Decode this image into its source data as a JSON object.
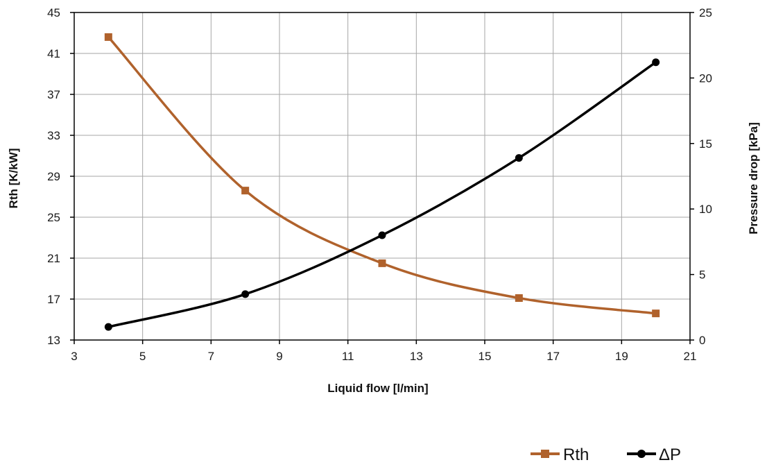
{
  "chart_data": {
    "type": "line",
    "xlabel": "Liquid flow [l/min]",
    "ylabel": "Rth [K/kW]",
    "y2label": "Pressure drop [kPa]",
    "xlim": [
      3,
      21
    ],
    "ylim": [
      13,
      45
    ],
    "y2lim": [
      0,
      25
    ],
    "x_ticks": [
      3,
      5,
      7,
      9,
      11,
      13,
      15,
      17,
      19,
      21
    ],
    "y_ticks": [
      13,
      17,
      21,
      25,
      29,
      33,
      37,
      41,
      45
    ],
    "y2_ticks": [
      0,
      5,
      10,
      15,
      20,
      25
    ],
    "grid": true,
    "legend_position": "bottom-right",
    "series": [
      {
        "name": "Rth",
        "axis": "left",
        "marker": "square",
        "color": "#B0622C",
        "x": [
          4,
          8,
          12,
          16,
          20
        ],
        "values": [
          42.6,
          27.6,
          20.5,
          17.1,
          15.6
        ]
      },
      {
        "name": "ΔP",
        "axis": "right",
        "marker": "circle",
        "color": "#000000",
        "x": [
          4,
          8,
          12,
          16,
          20
        ],
        "values": [
          1.0,
          3.5,
          8.0,
          13.9,
          21.2
        ]
      }
    ]
  }
}
